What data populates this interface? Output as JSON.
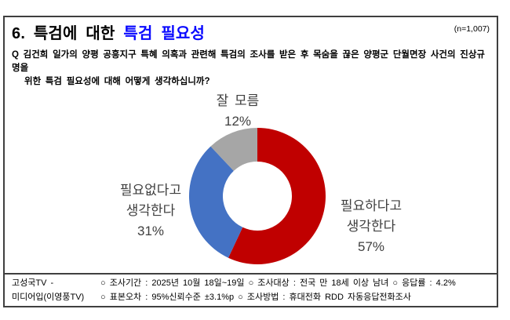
{
  "header": {
    "title_prefix": "6. 특검에 대한 ",
    "title_highlight": "특검 필요성",
    "sample_size": "(n=1,007)"
  },
  "question": {
    "line1": "Q 김건희 일가의 양평 공흥지구 특혜 의혹과 관련해 특검의 조사를 받은 후 목숨을 끊은 양평군 단월면장 사건의 진상규명을",
    "line2": "위한 특검 필요성에 대해 어떻게 생각하십니까?"
  },
  "chart_data": {
    "type": "pie",
    "subtype": "donut",
    "title": "특검에 대한 특검 필요성",
    "sample_size": "(n=1,007)",
    "categories": [
      "필요하다고 생각한다",
      "필요없다고 생각한다",
      "잘 모름"
    ],
    "values": [
      57,
      31,
      12
    ],
    "unit": "%",
    "colors": [
      "#c00000",
      "#4472c4",
      "#a6a6a6"
    ],
    "start_angle_deg": 0,
    "direction": "clockwise",
    "inner_radius_ratio": 0.51,
    "legend": "none",
    "labels": [
      {
        "position": "right",
        "lines": [
          "필요하다고",
          "생각한다",
          "57%"
        ]
      },
      {
        "position": "left",
        "lines": [
          "필요없다고",
          "생각한다",
          "31%"
        ]
      },
      {
        "position": "top",
        "lines": [
          "잘 모름",
          "12%"
        ]
      }
    ]
  },
  "footer": {
    "source_line1": "고성국TV -",
    "source_line2": "미디어입(이영풍TV)",
    "detail_line1": "○ 조사기간 : 2025년 10월 18일~19일 ○ 조사대상 : 전국 만 18세 이상 남녀 ○ 응답률 : 4.2%",
    "detail_line2": "○ 표본오차 : 95%신뢰수준 ±3.1%p ○ 조사방법 : 휴대전화 RDD 자동응답전화조사"
  }
}
